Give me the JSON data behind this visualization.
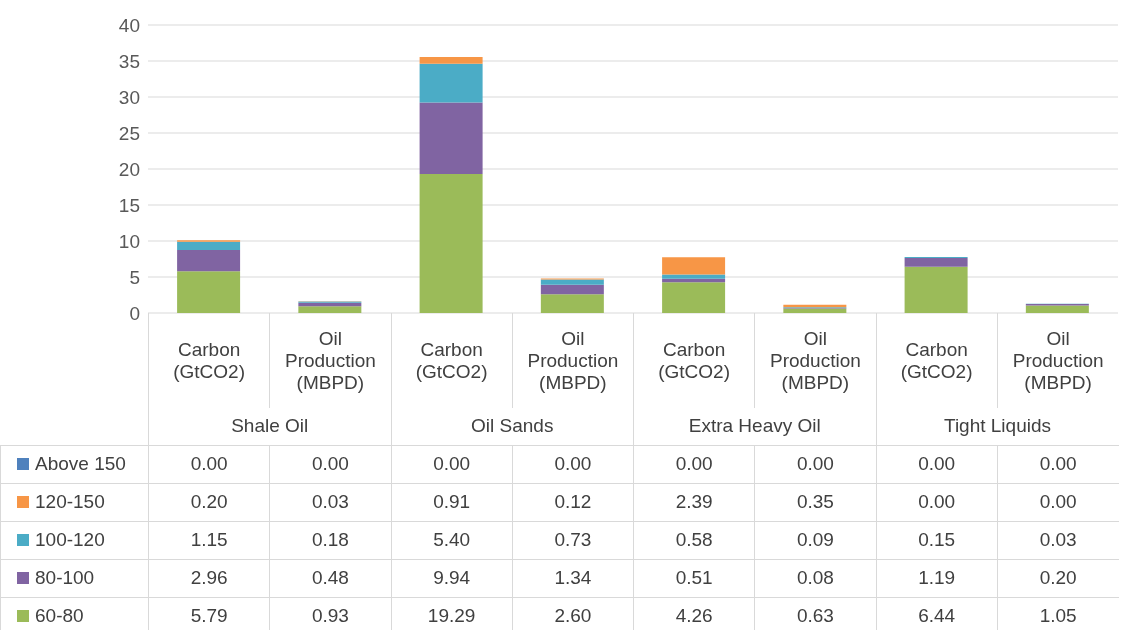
{
  "chart_data": {
    "type": "bar",
    "stacked": true,
    "categories": [
      "Carbon (GtCO2)",
      "Oil Production (MBPD)",
      "Carbon (GtCO2)",
      "Oil Production (MBPD)",
      "Carbon (GtCO2)",
      "Oil Production (MBPD)",
      "Carbon (GtCO2)",
      "Oil Production (MBPD)"
    ],
    "annotations": [
      "Shale Oil",
      "Oil Sands",
      "Extra Heavy Oil",
      "Tight Liquids"
    ],
    "series": [
      {
        "name": "60-80",
        "color": "#9bbb59",
        "values": [
          5.79,
          0.93,
          19.29,
          2.6,
          4.26,
          0.63,
          6.44,
          1.05
        ],
        "value_labels": [
          "5.79",
          "0.93",
          "19.29",
          "2.60",
          "4.26",
          "0.63",
          "6.44",
          "1.05"
        ]
      },
      {
        "name": "80-100",
        "color": "#8064a2",
        "values": [
          2.96,
          0.48,
          9.94,
          1.34,
          0.51,
          0.08,
          1.19,
          0.2
        ],
        "value_labels": [
          "2.96",
          "0.48",
          "9.94",
          "1.34",
          "0.51",
          "0.08",
          "1.19",
          "0.20"
        ]
      },
      {
        "name": "100-120",
        "color": "#4bacc6",
        "values": [
          1.15,
          0.18,
          5.4,
          0.73,
          0.58,
          0.09,
          0.15,
          0.03
        ],
        "value_labels": [
          "1.15",
          "0.18",
          "5.40",
          "0.73",
          "0.58",
          "0.09",
          "0.15",
          "0.03"
        ]
      },
      {
        "name": "120-150",
        "color": "#f79646",
        "values": [
          0.2,
          0.03,
          0.91,
          0.12,
          2.39,
          0.35,
          0,
          0
        ],
        "value_labels": [
          "0.20",
          "0.03",
          "0.91",
          "0.12",
          "2.39",
          "0.35",
          "0.00",
          "0.00"
        ]
      },
      {
        "name": "Above 150",
        "color": "#4f81bd",
        "values": [
          0,
          0,
          0,
          0,
          0,
          0,
          0,
          0
        ],
        "value_labels": [
          "0.00",
          "0.00",
          "0.00",
          "0.00",
          "0.00",
          "0.00",
          "0.00",
          "0.00"
        ]
      }
    ],
    "ylim": [
      0,
      40
    ],
    "yticks": [
      0,
      5,
      10,
      15,
      20,
      25,
      30,
      35,
      40
    ],
    "grid": "y",
    "legend": "bottom left"
  }
}
